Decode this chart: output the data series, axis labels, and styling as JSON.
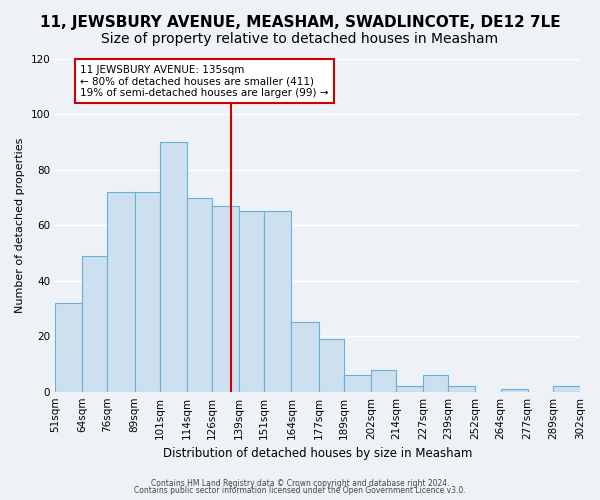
{
  "title": "11, JEWSBURY AVENUE, MEASHAM, SWADLINCOTE, DE12 7LE",
  "subtitle": "Size of property relative to detached houses in Measham",
  "xlabel": "Distribution of detached houses by size in Measham",
  "ylabel": "Number of detached properties",
  "bar_color": "#cce0f0",
  "bar_edge_color": "#6aafd6",
  "bar_values": [
    32,
    49,
    72,
    72,
    90,
    70,
    67,
    65,
    65,
    25,
    19,
    6,
    8,
    2,
    6,
    2,
    0,
    1,
    0,
    2
  ],
  "bin_labels": [
    "51sqm",
    "64sqm",
    "76sqm",
    "89sqm",
    "101sqm",
    "114sqm",
    "126sqm",
    "139sqm",
    "151sqm",
    "164sqm",
    "177sqm",
    "189sqm",
    "202sqm",
    "214sqm",
    "227sqm",
    "239sqm",
    "252sqm",
    "264sqm",
    "277sqm",
    "289sqm",
    "302sqm"
  ],
  "bin_edges": [
    51,
    64,
    76,
    89,
    101,
    114,
    126,
    139,
    151,
    164,
    177,
    189,
    202,
    214,
    227,
    239,
    252,
    264,
    277,
    289,
    302
  ],
  "reference_line_x": 135,
  "reference_line_color": "#cc0000",
  "annotation_title": "11 JEWSBURY AVENUE: 135sqm",
  "annotation_line1": "← 80% of detached houses are smaller (411)",
  "annotation_line2": "19% of semi-detached houses are larger (99) →",
  "annotation_box_color": "#ffffff",
  "annotation_box_edge_color": "#cc0000",
  "ylim": [
    0,
    120
  ],
  "yticks": [
    0,
    20,
    40,
    60,
    80,
    100,
    120
  ],
  "footer1": "Contains HM Land Registry data © Crown copyright and database right 2024.",
  "footer2": "Contains public sector information licensed under the Open Government Licence v3.0.",
  "background_color": "#eef2f7",
  "plot_background": "#eef2f7",
  "grid_color": "#ffffff",
  "title_fontsize": 11,
  "subtitle_fontsize": 10
}
